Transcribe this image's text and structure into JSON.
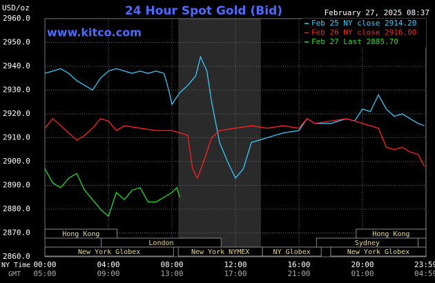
{
  "chart_data": {
    "type": "line",
    "title": "24 Hour Spot Gold (Bid)",
    "unit_label": "USD/oz",
    "website": "www.kitco.com",
    "timestamp": "February 27, 2025 08:37",
    "x_axis_labels": [
      "NY Time",
      "GMT"
    ],
    "xlim": [
      0,
      24
    ],
    "xticks": [
      {
        "value": 0,
        "label": "00:00"
      },
      {
        "value": 4,
        "label": "04:00"
      },
      {
        "value": 8,
        "label": "08:00"
      },
      {
        "value": 12,
        "label": "12:00"
      },
      {
        "value": 16,
        "label": "16:00"
      },
      {
        "value": 20,
        "label": "20:00"
      },
      {
        "value": 23.98,
        "label": "23:59"
      }
    ],
    "gmt_tick_labels": [
      "05:00",
      "09:00",
      "13:00",
      "17:00",
      "21:00",
      "01:00",
      "04:59"
    ],
    "ylim": [
      2860,
      2960
    ],
    "yticks": [
      {
        "value": 2860,
        "label": "2860.0"
      },
      {
        "value": 2870,
        "label": "2870.0"
      },
      {
        "value": 2880,
        "label": "2880.0"
      },
      {
        "value": 2890,
        "label": "2890.0"
      },
      {
        "value": 2900,
        "label": "2900.0"
      },
      {
        "value": 2910,
        "label": "2910.0"
      },
      {
        "value": 2920,
        "label": "2920.0"
      },
      {
        "value": 2930,
        "label": "2930.0"
      },
      {
        "value": 2940,
        "label": "2940.0"
      },
      {
        "value": 2950,
        "label": "2950.0"
      },
      {
        "value": 2960,
        "label": "2960.0"
      }
    ],
    "grid": true,
    "legend": "top-right",
    "series": [
      {
        "name": "Feb 25 NY close 2914.20",
        "color": "#33ccff",
        "x": [
          0,
          0.5,
          1,
          1.5,
          2,
          2.5,
          3,
          3.5,
          4,
          4.5,
          5,
          5.5,
          6,
          6.5,
          7,
          7.5,
          7.8,
          8,
          8.5,
          9,
          9.5,
          9.8,
          10.2,
          10.5,
          11,
          11.5,
          12,
          12.5,
          13,
          13.5,
          14,
          15,
          16,
          16.5,
          17,
          18,
          19,
          19.5,
          20,
          20.5,
          21,
          21.5,
          22,
          22.5,
          23,
          23.5,
          23.9
        ],
        "values": [
          2937,
          2938,
          2939,
          2937,
          2934,
          2932,
          2930,
          2935,
          2938,
          2939,
          2938,
          2937,
          2938,
          2937,
          2938,
          2937,
          2930,
          2924,
          2929,
          2932,
          2936,
          2944,
          2938,
          2925,
          2908,
          2900,
          2893,
          2897,
          2908,
          2909,
          2910,
          2912,
          2913,
          2918,
          2916,
          2916,
          2918,
          2917,
          2922,
          2921,
          2928,
          2922,
          2919,
          2920,
          2918,
          2916,
          2915
        ]
      },
      {
        "name": "Feb 26 NY close 2916.00",
        "color": "#ff2020",
        "x": [
          0,
          0.5,
          1,
          1.5,
          2,
          2.5,
          3,
          3.5,
          4,
          4.5,
          5,
          6,
          7,
          8,
          9,
          9.3,
          9.6,
          10,
          10.5,
          11,
          12,
          13,
          14,
          15,
          16,
          16.5,
          17,
          18,
          19,
          19.5,
          20,
          20.5,
          21,
          21.5,
          22,
          22.5,
          23,
          23.5,
          23.9
        ],
        "values": [
          2914,
          2918,
          2915,
          2912,
          2909,
          2911,
          2914,
          2918,
          2917,
          2913,
          2915,
          2914,
          2913,
          2913,
          2911,
          2897,
          2893,
          2900,
          2910,
          2913,
          2914,
          2915,
          2914,
          2915,
          2914,
          2918,
          2916,
          2917,
          2918,
          2917,
          2916,
          2915,
          2914,
          2906,
          2905,
          2906,
          2904,
          2903,
          2898
        ]
      },
      {
        "name": "Feb 27 Last 2885.70",
        "color": "#22dd22",
        "x": [
          0,
          0.5,
          1,
          1.5,
          2,
          2.5,
          3,
          3.5,
          4,
          4.3,
          4.5,
          5,
          5.5,
          6,
          6.5,
          7,
          7.5,
          8,
          8.3,
          8.5
        ],
        "values": [
          2897,
          2891,
          2889,
          2893,
          2895,
          2888,
          2884,
          2880,
          2877,
          2883,
          2887,
          2884,
          2888,
          2889,
          2883,
          2883,
          2885,
          2887,
          2889,
          2885
        ]
      }
    ],
    "sessions": [
      {
        "label": "Hong Kong",
        "row": 0,
        "start": 0,
        "end": 4.55
      },
      {
        "label": "Hong Kong",
        "row": 0,
        "start": 19.6,
        "end": 24
      },
      {
        "label": "London",
        "row": 1,
        "start": 3.55,
        "end": 11.1
      },
      {
        "label": "Sydney",
        "row": 1,
        "start": 17.1,
        "end": 23.5
      },
      {
        "label": "New York Globex",
        "row": 2,
        "start": 0,
        "end": 8.1
      },
      {
        "label": "New York NYMEX",
        "row": 2,
        "start": 8.4,
        "end": 13.7
      },
      {
        "label": "NY Globex",
        "row": 2,
        "start": 13.7,
        "end": 17.4
      },
      {
        "label": "New York Globex",
        "row": 2,
        "start": 18,
        "end": 24
      }
    ],
    "highlight": {
      "start": 8.4,
      "end": 13.6
    }
  }
}
